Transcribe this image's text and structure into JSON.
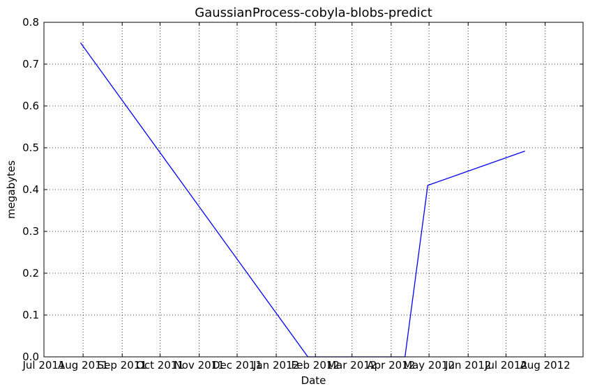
{
  "chart_data": {
    "type": "line",
    "title": "GaussianProcess-cobyla-blobs-predict",
    "xlabel": "Date",
    "ylabel": "megabytes",
    "xlim": [
      "2011-07-01",
      "2012-08-31"
    ],
    "ylim": [
      0,
      0.8
    ],
    "grid": true,
    "x_ticks": [
      {
        "date": "2011-07-01",
        "label": "Jul 2011"
      },
      {
        "date": "2011-08-01",
        "label": "Aug 2011"
      },
      {
        "date": "2011-09-01",
        "label": "Sep 2011"
      },
      {
        "date": "2011-10-01",
        "label": "Oct 2011"
      },
      {
        "date": "2011-11-01",
        "label": "Nov 2011"
      },
      {
        "date": "2011-12-01",
        "label": "Dec 2011"
      },
      {
        "date": "2012-01-01",
        "label": "Jan 2012"
      },
      {
        "date": "2012-02-01",
        "label": "Feb 2012"
      },
      {
        "date": "2012-03-01",
        "label": "Mar 2012"
      },
      {
        "date": "2012-04-01",
        "label": "Apr 2012"
      },
      {
        "date": "2012-05-01",
        "label": "May 2012"
      },
      {
        "date": "2012-06-01",
        "label": "Jun 2012"
      },
      {
        "date": "2012-07-01",
        "label": "Jul 2012"
      },
      {
        "date": "2012-08-01",
        "label": "Aug 2012"
      }
    ],
    "y_ticks": [
      {
        "value": 0.0,
        "label": "0.0"
      },
      {
        "value": 0.1,
        "label": "0.1"
      },
      {
        "value": 0.2,
        "label": "0.2"
      },
      {
        "value": 0.3,
        "label": "0.3"
      },
      {
        "value": 0.4,
        "label": "0.4"
      },
      {
        "value": 0.5,
        "label": "0.5"
      },
      {
        "value": 0.6,
        "label": "0.6"
      },
      {
        "value": 0.7,
        "label": "0.7"
      },
      {
        "value": 0.8,
        "label": "0.8"
      }
    ],
    "series": [
      {
        "color": "#0000ff",
        "points": [
          {
            "x": "2011-07-30",
            "y": 0.751
          },
          {
            "x": "2012-01-26",
            "y": 0.0
          },
          {
            "x": "2012-04-12",
            "y": 0.0
          },
          {
            "x": "2012-04-30",
            "y": 0.41
          },
          {
            "x": "2012-07-16",
            "y": 0.492
          }
        ]
      }
    ]
  }
}
